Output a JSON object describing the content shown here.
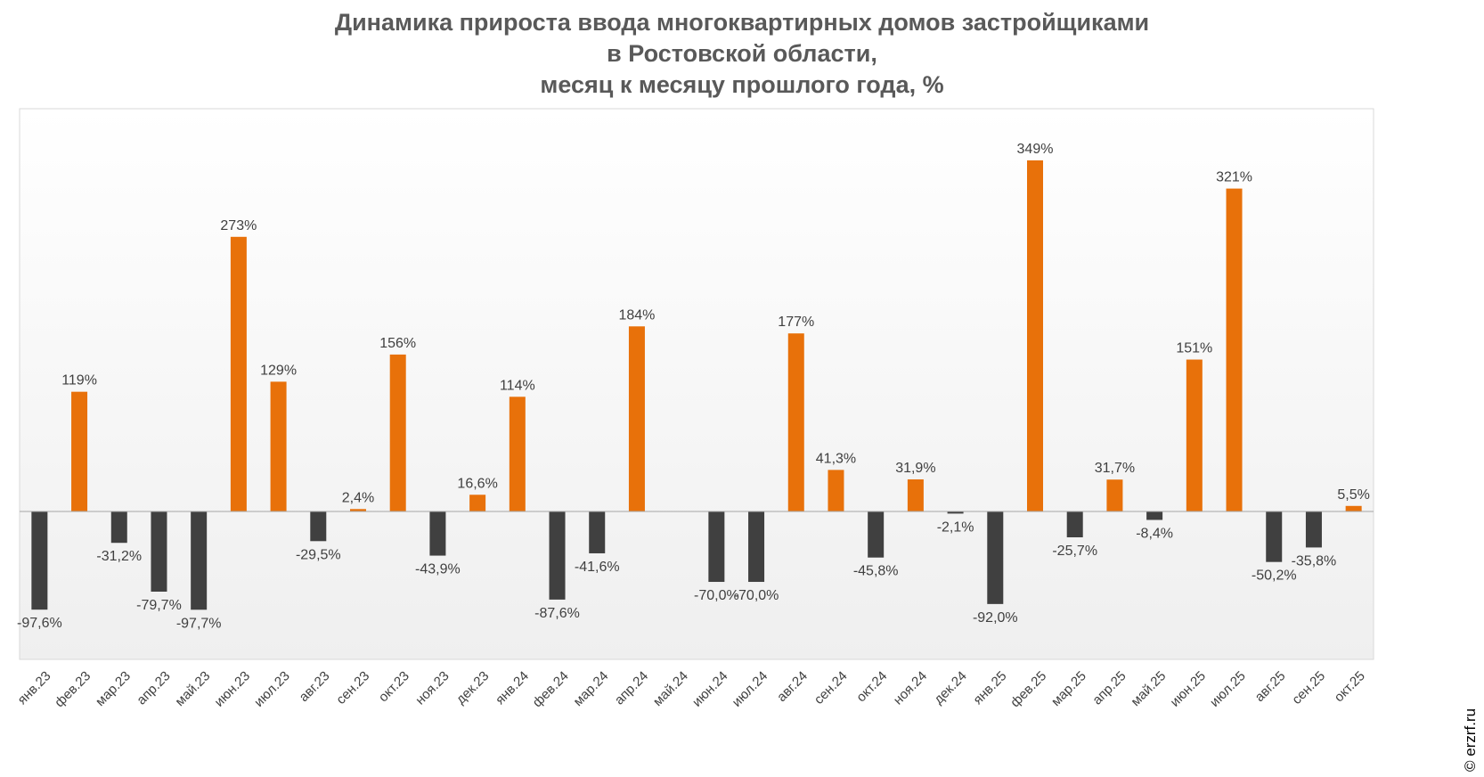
{
  "title_lines": [
    "Динамика прироста ввода многоквартирных домов застройщиками",
    "в Ростовской области,",
    "месяц к месяцу прошлого года, %"
  ],
  "watermark": "© erzrf.ru",
  "colors": {
    "positive": "#E8710A",
    "negative": "#404040",
    "label": "#404040",
    "plot_bg_top": "#ffffff",
    "plot_bg_bottom": "#efefef",
    "border": "#d9d9d9"
  },
  "chart_data": {
    "type": "bar",
    "title": "Динамика прироста ввода многоквартирных домов застройщиками в Ростовской области, месяц к месяцу прошлого года, %",
    "categories": [
      "янв.23",
      "фев.23",
      "мар.23",
      "апр.23",
      "май.23",
      "июн.23",
      "июл.23",
      "авг.23",
      "сен.23",
      "окт.23",
      "ноя.23",
      "дек.23",
      "янв.24",
      "фев.24",
      "мар.24",
      "апр.24",
      "май.24",
      "июн.24",
      "июл.24",
      "авг.24",
      "сен.24",
      "окт.24",
      "ноя.24",
      "дек.24",
      "янв.25",
      "фев.25",
      "мар.25",
      "апр.25",
      "май.25",
      "июн.25",
      "июл.25",
      "авг.25",
      "сен.25",
      "окт.25"
    ],
    "values": [
      -97.6,
      119,
      -31.2,
      -79.7,
      -97.7,
      273,
      129,
      -29.5,
      2.4,
      156,
      -43.9,
      16.6,
      114,
      -87.6,
      -41.6,
      184,
      null,
      -70.0,
      -70.0,
      177,
      41.3,
      -45.8,
      31.9,
      -2.1,
      -92.0,
      349,
      -25.7,
      31.7,
      -8.4,
      151,
      321,
      -50.2,
      -35.8,
      5.5
    ],
    "labels": [
      "-97,6%",
      "119%",
      "-31,2%",
      "-79,7%",
      "-97,7%",
      "273%",
      "129%",
      "-29,5%",
      "2,4%",
      "156%",
      "-43,9%",
      "16,6%",
      "114%",
      "-87,6%",
      "-41,6%",
      "184%",
      "",
      "-70,0%",
      "-70,0%",
      "177%",
      "41,3%",
      "-45,8%",
      "31,9%",
      "-2,1%",
      "-92,0%",
      "349%",
      "-25,7%",
      "31,7%",
      "-8,4%",
      "151%",
      "321%",
      "-50,2%",
      "-35,8%",
      "5,5%"
    ],
    "xlabel": "",
    "ylabel": "",
    "ylim": [
      -150,
      400
    ],
    "grid": false,
    "legend": "none"
  }
}
